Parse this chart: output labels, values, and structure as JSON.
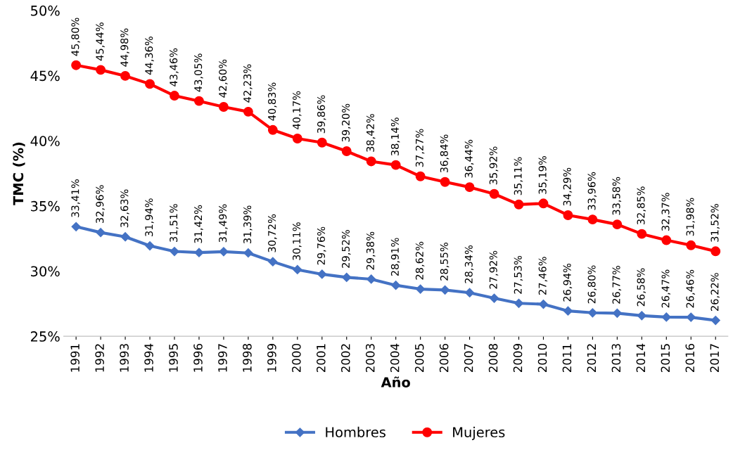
{
  "chart_data": {
    "type": "line",
    "xlabel": "Año",
    "ylabel": "TMC (%)",
    "categories": [
      "1991",
      "1992",
      "1993",
      "1994",
      "1995",
      "1996",
      "1997",
      "1998",
      "1999",
      "2000",
      "2001",
      "2002",
      "2003",
      "2004",
      "2005",
      "2006",
      "2007",
      "2008",
      "2009",
      "2010",
      "2011",
      "2012",
      "2013",
      "2014",
      "2015",
      "2016",
      "2017"
    ],
    "series": [
      {
        "name": "Hombres",
        "color": "#4472c4",
        "marker": "diamond",
        "values": [
          33.41,
          32.96,
          32.63,
          31.94,
          31.51,
          31.42,
          31.49,
          31.39,
          30.72,
          30.11,
          29.76,
          29.52,
          29.38,
          28.91,
          28.62,
          28.55,
          28.34,
          27.92,
          27.53,
          27.46,
          26.94,
          26.8,
          26.77,
          26.58,
          26.47,
          26.46,
          26.22
        ],
        "value_labels": [
          "33,41%",
          "32,96%",
          "32,63%",
          "31,94%",
          "31,51%",
          "31,42%",
          "31,49%",
          "31,39%",
          "30,72%",
          "30,11%",
          "29,76%",
          "29,52%",
          "29,38%",
          "28,91%",
          "28,62%",
          "28,55%",
          "28,34%",
          "27,92%",
          "27,53%",
          "27,46%",
          "26,94%",
          "26,80%",
          "26,77%",
          "26,58%",
          "26,47%",
          "26,46%",
          "26,22%"
        ]
      },
      {
        "name": "Mujeres",
        "color": "#ff0000",
        "marker": "circle",
        "values": [
          45.8,
          45.44,
          44.98,
          44.36,
          43.46,
          43.05,
          42.6,
          42.23,
          40.83,
          40.17,
          39.86,
          39.2,
          38.42,
          38.14,
          37.27,
          36.84,
          36.44,
          35.92,
          35.11,
          35.19,
          34.29,
          33.96,
          33.58,
          32.85,
          32.37,
          31.98,
          31.52
        ],
        "value_labels": [
          "45,80%",
          "45,44%",
          "44,98%",
          "44,36%",
          "43,46%",
          "43,05%",
          "42,60%",
          "42,23%",
          "40,83%",
          "40,17%",
          "39,86%",
          "39,20%",
          "38,42%",
          "38,14%",
          "37,27%",
          "36,84%",
          "36,44%",
          "35,92%",
          "35,11%",
          "35,19%",
          "34,29%",
          "33,96%",
          "33,58%",
          "32,85%",
          "32,37%",
          "31,98%",
          "31,52%"
        ]
      }
    ],
    "ylim": [
      25,
      50
    ],
    "yticks": [
      {
        "value": 25,
        "label": "25%"
      },
      {
        "value": 30,
        "label": "30%"
      },
      {
        "value": 35,
        "label": "35%"
      },
      {
        "value": 40,
        "label": "40%"
      },
      {
        "value": 45,
        "label": "45%"
      },
      {
        "value": 50,
        "label": "50%"
      }
    ],
    "grid": false,
    "legend": "bottom",
    "line_style": "solid"
  }
}
